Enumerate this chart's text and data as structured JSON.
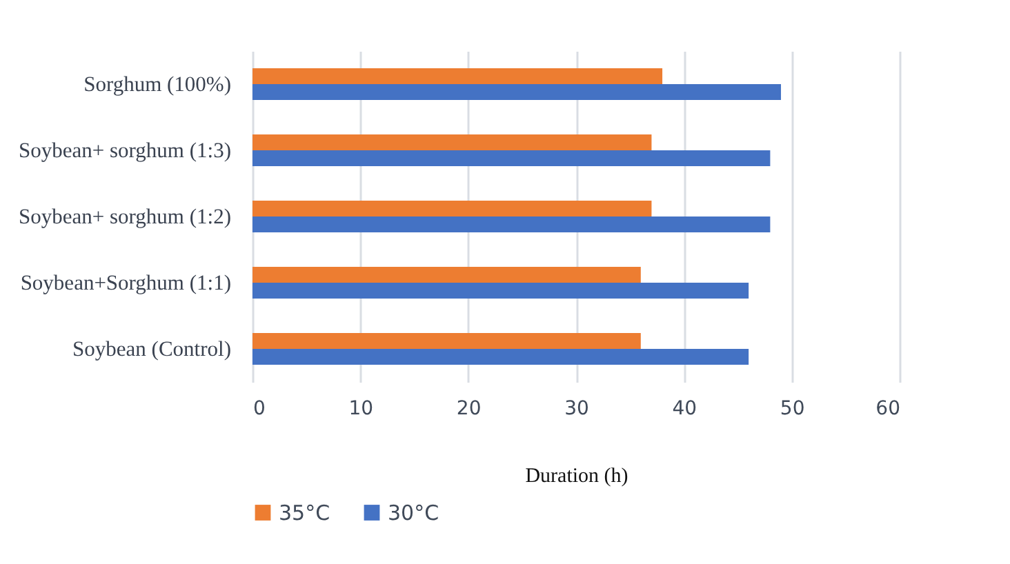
{
  "chart_data": {
    "type": "bar",
    "orientation": "horizontal",
    "xlabel": "Duration (h)",
    "categories": [
      "Sorghum (100%)",
      "Soybean+ sorghum (1:3)",
      "Soybean+ sorghum (1:2)",
      "Soybean+Sorghum   (1:1)",
      "Soybean (Control)"
    ],
    "series": [
      {
        "name": "35°C",
        "color": "#ed7d31",
        "values": [
          38,
          37,
          37,
          36,
          36
        ]
      },
      {
        "name": "30°C",
        "color": "#4472c4",
        "values": [
          49,
          48,
          48,
          46,
          46
        ]
      }
    ],
    "xlim": [
      0,
      60
    ],
    "xticks": [
      0,
      10,
      20,
      30,
      40,
      50,
      60
    ],
    "grid": true,
    "legend": "bottom"
  }
}
